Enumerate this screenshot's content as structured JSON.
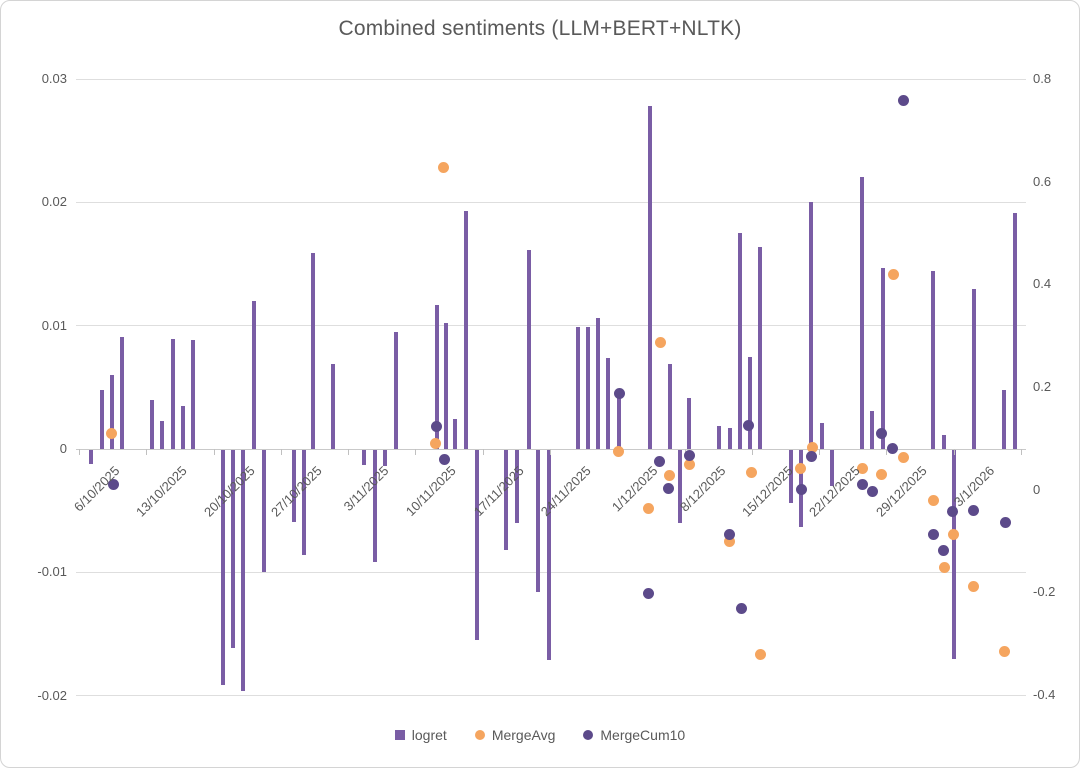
{
  "chart": {
    "title": "Combined sentiments (LLM+BERT+NLTK)",
    "colors": {
      "bar": "#7a5da5",
      "merge_avg": "#f5a55f",
      "merge_cum10": "#5c4a8a",
      "grid": "#dedede",
      "axis": "#c9c9c9",
      "text": "#595959"
    },
    "legend": [
      {
        "label": "logret",
        "marker": "square",
        "color": "#7a5da5"
      },
      {
        "label": "MergeAvg",
        "marker": "circle",
        "color": "#f5a55f"
      },
      {
        "label": "MergeCum10",
        "marker": "circle",
        "color": "#5c4a8a"
      }
    ]
  },
  "chart_data": {
    "type": "combo bar + scatter, dual axis",
    "title": "Combined sentiments (LLM+BERT+NLTK)",
    "x_axis": {
      "labels": [
        "6/10/2025",
        "13/10/2025",
        "20/10/2025",
        "27/10/2025",
        "3/11/2025",
        "10/11/2025",
        "17/11/2025",
        "24/11/2025",
        "1/12/2025",
        "8/12/2025",
        "15/12/2025",
        "22/12/2025",
        "29/12/2025",
        "3/1/2026"
      ],
      "tick_count": 15,
      "note": "x of points given as fraction 0-1 across plot width"
    },
    "left_axis": {
      "series": "logret",
      "range": [
        -0.02,
        0.03
      ],
      "ticks": [
        0.03,
        0.02,
        0.01,
        0,
        -0.01,
        -0.02
      ],
      "tick_labels": [
        "0.03",
        "0.02",
        "0.01",
        "0",
        "-0.01",
        "-0.02"
      ]
    },
    "right_axis": {
      "series": [
        "MergeAvg",
        "MergeCum10"
      ],
      "range": [
        -0.4,
        0.8
      ],
      "ticks": [
        0.8,
        0.6,
        0.4,
        0.2,
        0,
        -0.2,
        -0.4
      ],
      "tick_labels": [
        "0.8",
        "0.6",
        "0.4",
        "0.2",
        "0",
        "-0.2",
        "-0.4"
      ]
    },
    "grid": "horizontal only",
    "legend_position": "bottom center",
    "series": [
      {
        "name": "logret",
        "type": "bar",
        "axis": "left",
        "points": [
          {
            "x": 0.016,
            "v": -0.0012
          },
          {
            "x": 0.027,
            "v": 0.0048
          },
          {
            "x": 0.038,
            "v": 0.006
          },
          {
            "x": 0.048,
            "v": 0.0091
          },
          {
            "x": 0.08,
            "v": 0.004
          },
          {
            "x": 0.091,
            "v": 0.0023
          },
          {
            "x": 0.102,
            "v": 0.0089
          },
          {
            "x": 0.113,
            "v": 0.0035
          },
          {
            "x": 0.123,
            "v": 0.0088
          },
          {
            "x": 0.155,
            "v": -0.0191
          },
          {
            "x": 0.165,
            "v": -0.0161
          },
          {
            "x": 0.176,
            "v": -0.0196
          },
          {
            "x": 0.187,
            "v": 0.012
          },
          {
            "x": 0.198,
            "v": -0.01
          },
          {
            "x": 0.229,
            "v": -0.0059
          },
          {
            "x": 0.24,
            "v": -0.0086
          },
          {
            "x": 0.249,
            "v": 0.0159
          },
          {
            "x": 0.271,
            "v": 0.0069
          },
          {
            "x": 0.303,
            "v": -0.0013
          },
          {
            "x": 0.315,
            "v": -0.0092
          },
          {
            "x": 0.325,
            "v": -0.0014
          },
          {
            "x": 0.337,
            "v": 0.0095
          },
          {
            "x": 0.38,
            "v": 0.0117
          },
          {
            "x": 0.389,
            "v": 0.0102
          },
          {
            "x": 0.399,
            "v": 0.0024
          },
          {
            "x": 0.411,
            "v": 0.0193
          },
          {
            "x": 0.422,
            "v": -0.0155
          },
          {
            "x": 0.453,
            "v": -0.0082
          },
          {
            "x": 0.464,
            "v": -0.006
          },
          {
            "x": 0.477,
            "v": 0.0161
          },
          {
            "x": 0.486,
            "v": -0.0116
          },
          {
            "x": 0.498,
            "v": -0.0171
          },
          {
            "x": 0.528,
            "v": 0.0099
          },
          {
            "x": 0.539,
            "v": 0.0099
          },
          {
            "x": 0.549,
            "v": 0.0106
          },
          {
            "x": 0.56,
            "v": 0.0074
          },
          {
            "x": 0.572,
            "v": 0.0045
          },
          {
            "x": 0.604,
            "v": 0.0278
          },
          {
            "x": 0.625,
            "v": 0.0069
          },
          {
            "x": 0.636,
            "v": -0.006
          },
          {
            "x": 0.645,
            "v": 0.0041
          },
          {
            "x": 0.677,
            "v": 0.0019
          },
          {
            "x": 0.688,
            "v": 0.0017
          },
          {
            "x": 0.699,
            "v": 0.0175
          },
          {
            "x": 0.709,
            "v": 0.0075
          },
          {
            "x": 0.72,
            "v": 0.0164
          },
          {
            "x": 0.753,
            "v": -0.0044
          },
          {
            "x": 0.763,
            "v": -0.0063
          },
          {
            "x": 0.774,
            "v": 0.02
          },
          {
            "x": 0.785,
            "v": 0.0021
          },
          {
            "x": 0.796,
            "v": -0.003
          },
          {
            "x": 0.827,
            "v": 0.0221
          },
          {
            "x": 0.838,
            "v": 0.0031
          },
          {
            "x": 0.849,
            "v": 0.0147
          },
          {
            "x": 0.902,
            "v": 0.0144
          },
          {
            "x": 0.914,
            "v": 0.0011
          },
          {
            "x": 0.924,
            "v": -0.017
          },
          {
            "x": 0.945,
            "v": 0.013
          },
          {
            "x": 0.977,
            "v": 0.0048
          },
          {
            "x": 0.988,
            "v": 0.0191
          }
        ]
      },
      {
        "name": "MergeAvg",
        "type": "scatter",
        "axis": "right",
        "points": [
          {
            "x": 0.037,
            "v": 0.11
          },
          {
            "x": 0.378,
            "v": 0.09
          },
          {
            "x": 0.387,
            "v": 0.627
          },
          {
            "x": 0.571,
            "v": 0.075
          },
          {
            "x": 0.603,
            "v": -0.036
          },
          {
            "x": 0.615,
            "v": 0.287
          },
          {
            "x": 0.625,
            "v": 0.028
          },
          {
            "x": 0.646,
            "v": 0.049
          },
          {
            "x": 0.688,
            "v": -0.101
          },
          {
            "x": 0.711,
            "v": 0.033
          },
          {
            "x": 0.72,
            "v": -0.321
          },
          {
            "x": 0.763,
            "v": 0.041
          },
          {
            "x": 0.775,
            "v": 0.082
          },
          {
            "x": 0.828,
            "v": 0.042
          },
          {
            "x": 0.848,
            "v": 0.029
          },
          {
            "x": 0.86,
            "v": 0.419
          },
          {
            "x": 0.871,
            "v": 0.063
          },
          {
            "x": 0.903,
            "v": -0.021
          },
          {
            "x": 0.914,
            "v": -0.151
          },
          {
            "x": 0.924,
            "v": -0.087
          },
          {
            "x": 0.945,
            "v": -0.188
          },
          {
            "x": 0.977,
            "v": -0.316
          }
        ]
      },
      {
        "name": "MergeCum10",
        "type": "scatter",
        "axis": "right",
        "points": [
          {
            "x": 0.039,
            "v": 0.01
          },
          {
            "x": 0.379,
            "v": 0.124
          },
          {
            "x": 0.388,
            "v": 0.059
          },
          {
            "x": 0.572,
            "v": 0.187
          },
          {
            "x": 0.603,
            "v": -0.203
          },
          {
            "x": 0.614,
            "v": 0.054
          },
          {
            "x": 0.624,
            "v": 0.002
          },
          {
            "x": 0.646,
            "v": 0.067
          },
          {
            "x": 0.688,
            "v": -0.088
          },
          {
            "x": 0.7,
            "v": -0.232
          },
          {
            "x": 0.708,
            "v": 0.125
          },
          {
            "x": 0.764,
            "v": 0.0
          },
          {
            "x": 0.774,
            "v": 0.064
          },
          {
            "x": 0.828,
            "v": 0.01
          },
          {
            "x": 0.838,
            "v": -0.003
          },
          {
            "x": 0.848,
            "v": 0.109
          },
          {
            "x": 0.859,
            "v": 0.081
          },
          {
            "x": 0.871,
            "v": 0.758
          },
          {
            "x": 0.903,
            "v": -0.087
          },
          {
            "x": 0.913,
            "v": -0.119
          },
          {
            "x": 0.923,
            "v": -0.042
          },
          {
            "x": 0.945,
            "v": -0.04
          },
          {
            "x": 0.978,
            "v": -0.064
          }
        ]
      }
    ]
  }
}
